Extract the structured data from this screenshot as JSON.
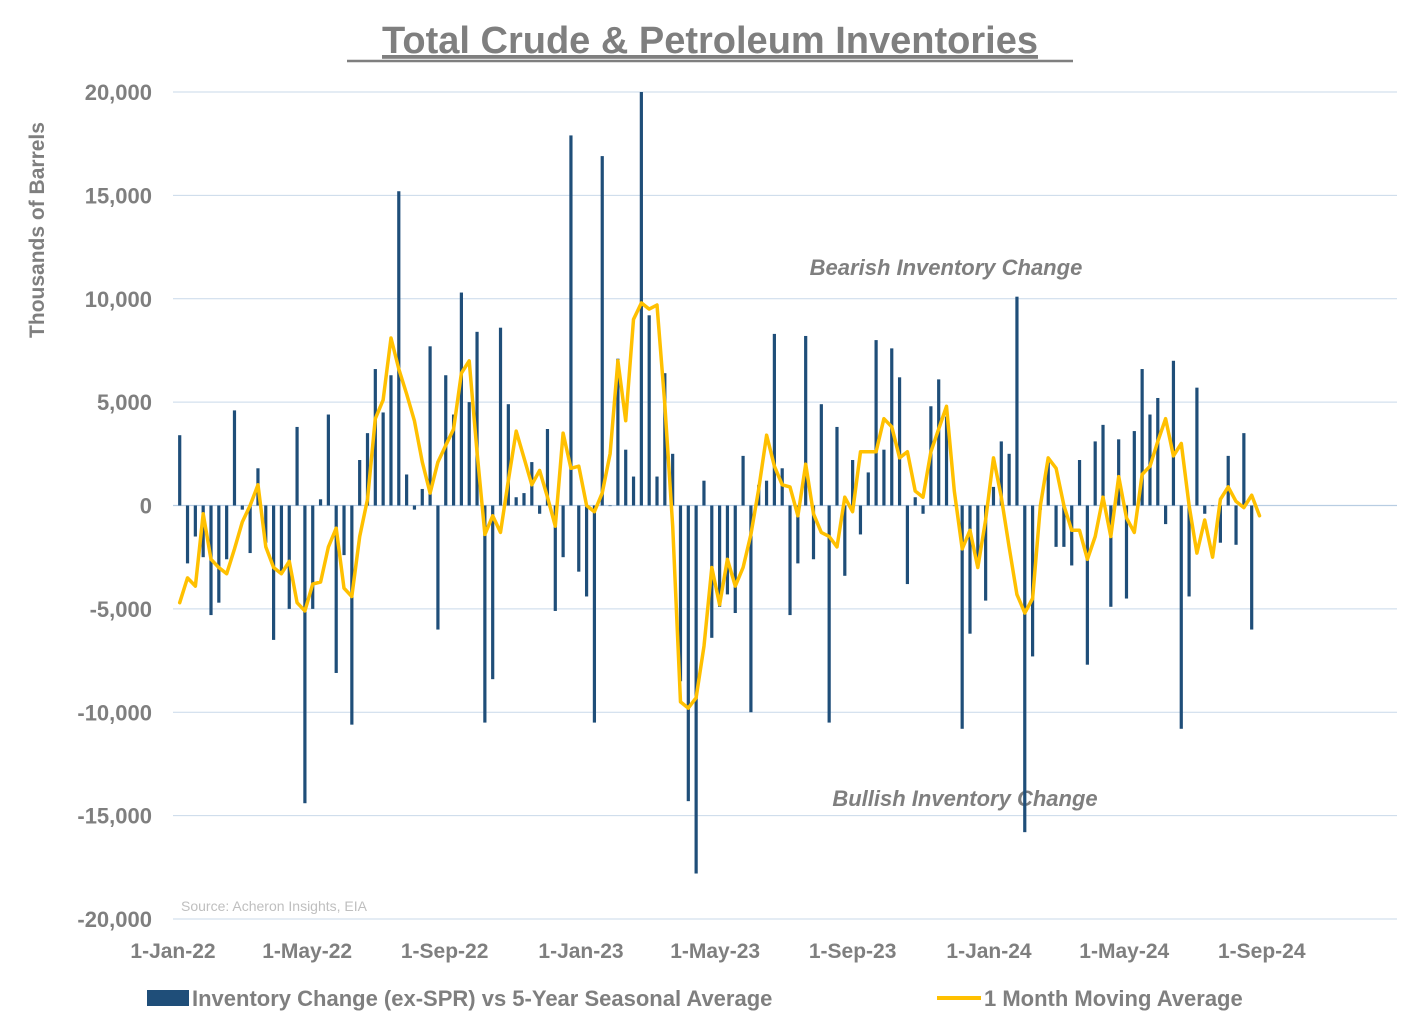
{
  "chart_data": {
    "type": "bar",
    "title": "Total Crude & Petroleum Inventories",
    "ylabel": "Thousands of Barrels",
    "xlabel": "",
    "ylim": [
      -20000,
      20000
    ],
    "yticks": [
      20000,
      15000,
      10000,
      5000,
      0,
      -5000,
      -10000,
      -15000,
      -20000
    ],
    "ytick_labels": [
      "20,000",
      "15,000",
      "10,000",
      "5,000",
      "0",
      "-5,000",
      "-10,000",
      "-15,000",
      "-20,000"
    ],
    "xlim": [
      "2022-01-01",
      "2024-12-31"
    ],
    "xticks": [
      {
        "date": "2022-01-01",
        "label": "1-Jan-22"
      },
      {
        "date": "2022-05-01",
        "label": "1-May-22"
      },
      {
        "date": "2022-09-01",
        "label": "1-Sep-22"
      },
      {
        "date": "2023-01-01",
        "label": "1-Jan-23"
      },
      {
        "date": "2023-05-01",
        "label": "1-May-23"
      },
      {
        "date": "2023-09-01",
        "label": "1-Sep-23"
      },
      {
        "date": "2024-01-01",
        "label": "1-Jan-24"
      },
      {
        "date": "2024-05-01",
        "label": "1-May-24"
      },
      {
        "date": "2024-09-01",
        "label": "1-Sep-24"
      }
    ],
    "grid": true,
    "legend_position": "bottom",
    "annotations": [
      "Bearish Inventory Change",
      "Bullish Inventory Change"
    ],
    "source_note": "Source: Acheron Insights, EIA",
    "series": [
      {
        "name": "Inventory Change (ex-SPR) vs 5-Year Seasonal Average",
        "kind": "bar",
        "color": "#1f4e79",
        "start_date": "2022-01-07",
        "interval_days": 7,
        "values": [
          3400,
          -2800,
          -1500,
          -2500,
          -5300,
          -4700,
          -2600,
          4600,
          -200,
          -2300,
          1800,
          -1800,
          -6500,
          -3300,
          -5000,
          3800,
          -14400,
          -5000,
          300,
          4400,
          -8100,
          -2400,
          -10600,
          2200,
          3500,
          6600,
          4500,
          6300,
          15200,
          1500,
          -200,
          800,
          7700,
          -6000,
          6300,
          4400,
          10300,
          5000,
          8400,
          -10500,
          -8400,
          8600,
          4900,
          400,
          600,
          2100,
          -400,
          3700,
          -5100,
          -2500,
          17900,
          -3200,
          -4400,
          -10500,
          16900,
          0,
          7100,
          2700,
          1400,
          20000,
          9200,
          1400,
          6400,
          2500,
          -8500,
          -14300,
          -17800,
          1200,
          -6400,
          -4900,
          -4300,
          -5200,
          2400,
          -10000,
          1000,
          1200,
          8300,
          1800,
          -5300,
          -2800,
          8200,
          -2600,
          4900,
          -10500,
          3800,
          -3400,
          2200,
          -1400,
          1600,
          8000,
          2700,
          7600,
          6200,
          -3800,
          400,
          -400,
          4800,
          6100,
          4300,
          0,
          -10800,
          -6200,
          -3000,
          -4600,
          900,
          3100,
          2500,
          10100,
          -15800,
          -7300,
          -200,
          2200,
          -2000,
          -2000,
          -2900,
          2200,
          -7700,
          3100,
          3900,
          -4900,
          3200,
          -4500,
          3600,
          6600,
          4400,
          5200,
          -900,
          7000,
          -10800,
          -4400,
          5700,
          -400,
          0,
          -1800,
          2400,
          -1900,
          3500,
          -6000
        ]
      },
      {
        "name": "1 Month Moving Average",
        "kind": "line",
        "color": "#ffc000",
        "start_date": "2022-01-07",
        "interval_days": 7,
        "values": [
          -4700,
          -3500,
          -3900,
          -400,
          -2600,
          -3000,
          -3300,
          -2100,
          -800,
          0,
          1000,
          -2000,
          -3000,
          -3300,
          -2700,
          -4700,
          -5100,
          -3800,
          -3700,
          -2000,
          -1100,
          -4000,
          -4400,
          -1500,
          300,
          4200,
          5100,
          8100,
          6600,
          5400,
          4100,
          2100,
          600,
          2100,
          2900,
          3700,
          6400,
          7000,
          2600,
          -1400,
          -500,
          -1300,
          1200,
          3600,
          2300,
          1000,
          1700,
          400,
          -1000,
          3500,
          1800,
          1900,
          0,
          -300,
          600,
          2500,
          7000,
          4100,
          9000,
          9800,
          9500,
          9700,
          4900,
          -1000,
          -9500,
          -9800,
          -9300,
          -6800,
          -3000,
          -4800,
          -2600,
          -3900,
          -3000,
          -1400,
          800,
          3400,
          1900,
          1000,
          900,
          -500,
          2000,
          -400,
          -1300,
          -1500,
          -2000,
          400,
          -300,
          2600,
          2600,
          2600,
          4200,
          3800,
          2300,
          2600,
          700,
          400,
          2600,
          3700,
          4800,
          700,
          -2100,
          -1200,
          -3000,
          -700,
          2300,
          400,
          -2000,
          -4300,
          -5200,
          -4500,
          0,
          2300,
          1800,
          0,
          -1200,
          -1200,
          -2600,
          -1500,
          400,
          -1500,
          1400,
          -600,
          -1300,
          1500,
          1900,
          3100,
          4200,
          2400,
          3000,
          0,
          -2300,
          -700,
          -2500,
          300,
          900,
          200,
          -100,
          500,
          -500
        ]
      }
    ]
  }
}
